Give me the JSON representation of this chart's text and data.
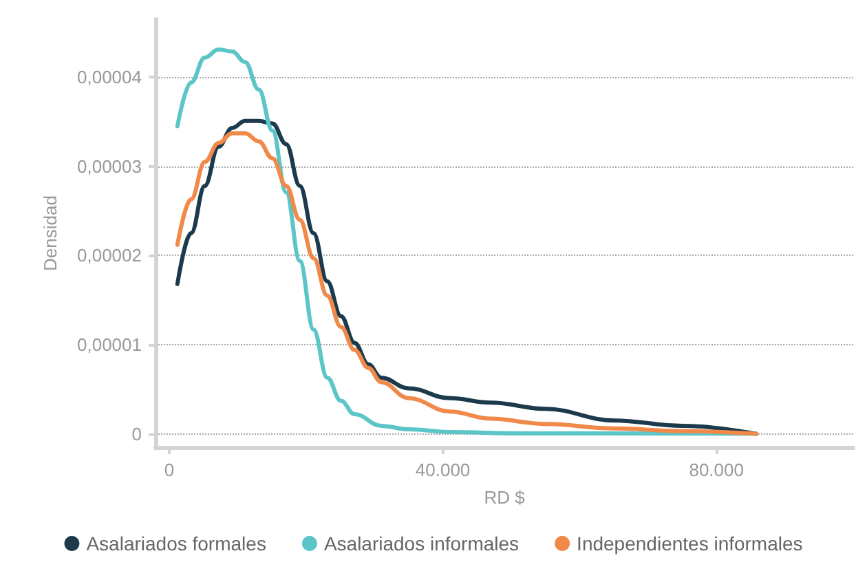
{
  "chart_data": {
    "type": "line",
    "xlabel": "RD $",
    "ylabel": "Densidad",
    "xlim": [
      -2000,
      100000
    ],
    "ylim": [
      -1.5e-06,
      4.65e-05
    ],
    "xticks": [
      0,
      {
        "value": 40000,
        "label": "40.000"
      },
      {
        "value": 80000,
        "label": "80.000"
      }
    ],
    "yticks": [
      0,
      {
        "value": 1e-05,
        "label": "0,00001"
      },
      {
        "value": 2e-05,
        "label": "0,00002"
      },
      {
        "value": 3e-05,
        "label": "0,00003"
      },
      {
        "value": 4e-05,
        "label": "0,00004"
      }
    ],
    "grid": "y",
    "legend": "bottom",
    "marker": "none",
    "line_style": "solid",
    "series": [
      {
        "name": "Asalariados formales",
        "color": "#1b3a4b",
        "x": [
          1200,
          3200,
          5200,
          7200,
          9200,
          11100,
          13100,
          15100,
          17100,
          19100,
          21100,
          23100,
          25100,
          27100,
          29100,
          31000,
          35000,
          41000,
          47000,
          55000,
          65000,
          75000,
          85800
        ],
        "values": [
          1.68e-05,
          2.25e-05,
          2.78e-05,
          3.22e-05,
          3.43e-05,
          3.51e-05,
          3.51e-05,
          3.48e-05,
          3.25e-05,
          2.78e-05,
          2.25e-05,
          1.71e-05,
          1.32e-05,
          1.02e-05,
          7.8e-06,
          6.3e-06,
          5.1e-06,
          4e-06,
          3.5e-06,
          2.8e-06,
          1.5e-06,
          9e-07,
          0
        ]
      },
      {
        "name": "Asalariados informales",
        "color": "#5bc5c8",
        "x": [
          1200,
          3200,
          5200,
          7200,
          9200,
          11100,
          13100,
          15100,
          17100,
          19100,
          21100,
          23100,
          25100,
          27100,
          31000,
          35000,
          41000,
          51000,
          85800
        ],
        "values": [
          3.45e-05,
          3.94e-05,
          4.22e-05,
          4.31e-05,
          4.29e-05,
          4.17e-05,
          3.86e-05,
          3.4e-05,
          2.71e-05,
          1.94e-05,
          1.17e-05,
          6.3e-06,
          3.7e-06,
          2.2e-06,
          9e-07,
          5e-07,
          2e-07,
          5e-08,
          0
        ]
      },
      {
        "name": "Independientes informales",
        "color": "#f0894a",
        "x": [
          1200,
          3200,
          5200,
          7200,
          9200,
          11100,
          13100,
          15100,
          17100,
          19100,
          21100,
          23100,
          25100,
          27100,
          29100,
          31000,
          35000,
          41000,
          47000,
          55000,
          65000,
          75000,
          85800
        ],
        "values": [
          2.12e-05,
          2.63e-05,
          3.05e-05,
          3.26e-05,
          3.37e-05,
          3.37e-05,
          3.28e-05,
          3.09e-05,
          2.78e-05,
          2.4e-05,
          1.97e-05,
          1.55e-05,
          1.2e-05,
          9.4e-06,
          7.4e-06,
          5.8e-06,
          4e-06,
          2.5e-06,
          1.7e-06,
          1.1e-06,
          6e-07,
          3e-07,
          0
        ]
      }
    ]
  }
}
